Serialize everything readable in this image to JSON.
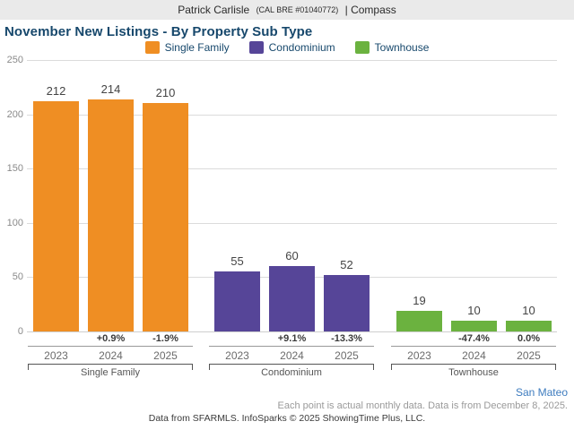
{
  "header": {
    "name": "Patrick Carlisle",
    "license": "(CAL BRE #01040772)",
    "suffix": "| Compass"
  },
  "title": "November New Listings - By Property Sub Type",
  "colors": {
    "single_family": "#EF8E23",
    "condominium": "#564598",
    "townhouse": "#6BB23F",
    "title_text": "#17486C",
    "location_link": "#3E7CBF"
  },
  "chart_data": {
    "type": "bar",
    "title": "November New Listings - By Property Sub Type",
    "ylim": [
      0,
      250
    ],
    "yticks": [
      0,
      50,
      100,
      150,
      200,
      250
    ],
    "grid": true,
    "legend_position": "top-center",
    "legend": [
      {
        "label": "Single Family",
        "color": "#EF8E23"
      },
      {
        "label": "Condominium",
        "color": "#564598"
      },
      {
        "label": "Townhouse",
        "color": "#6BB23F"
      }
    ],
    "categories": [
      "2023",
      "2024",
      "2025"
    ],
    "groups": [
      {
        "label": "Single Family",
        "color": "#EF8E23",
        "bars": [
          {
            "year": "2023",
            "value": 212,
            "pct_change": null
          },
          {
            "year": "2024",
            "value": 214,
            "pct_change": "+0.9%"
          },
          {
            "year": "2025",
            "value": 210,
            "pct_change": "-1.9%"
          }
        ]
      },
      {
        "label": "Condominium",
        "color": "#564598",
        "bars": [
          {
            "year": "2023",
            "value": 55,
            "pct_change": null
          },
          {
            "year": "2024",
            "value": 60,
            "pct_change": "+9.1%"
          },
          {
            "year": "2025",
            "value": 52,
            "pct_change": "-13.3%"
          }
        ]
      },
      {
        "label": "Townhouse",
        "color": "#6BB23F",
        "bars": [
          {
            "year": "2023",
            "value": 19,
            "pct_change": null
          },
          {
            "year": "2024",
            "value": 10,
            "pct_change": "-47.4%"
          },
          {
            "year": "2025",
            "value": 10,
            "pct_change": "0.0%"
          }
        ]
      }
    ]
  },
  "footer": {
    "location": "San Mateo",
    "note": "Each point is actual monthly data. Data is from December 8, 2025.",
    "credit": "Data from SFARMLS. InfoSparks © 2025 ShowingTime Plus, LLC."
  }
}
